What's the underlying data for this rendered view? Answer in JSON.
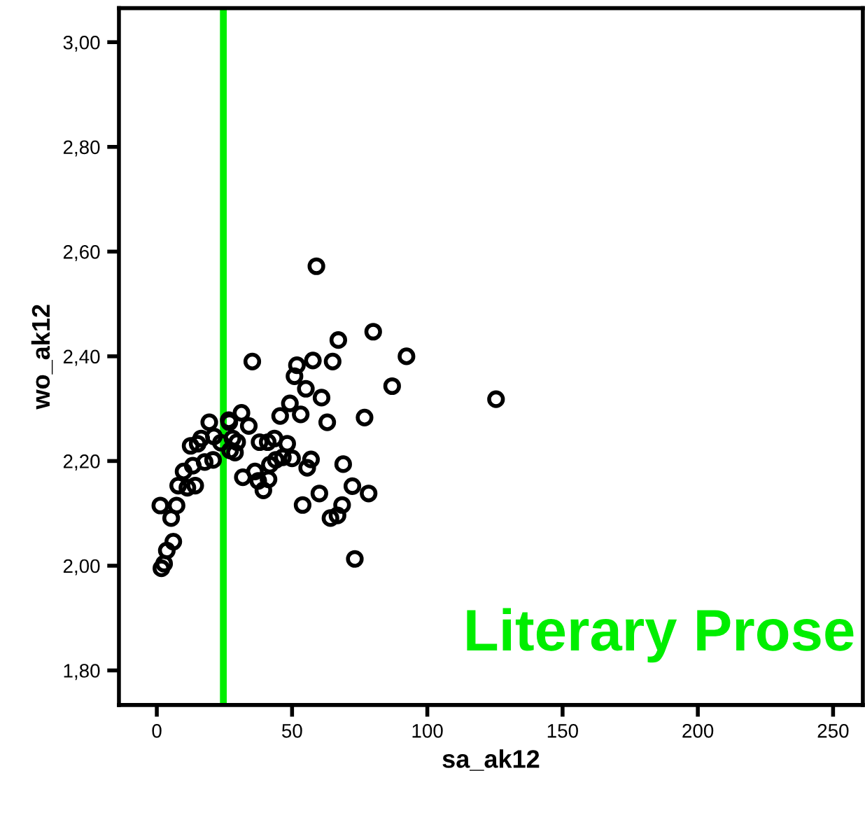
{
  "chart_data": {
    "type": "scatter",
    "xlabel": "sa_ak12",
    "ylabel": "wo_ak12",
    "x": [
      59,
      80,
      67.1,
      92.3,
      35.3,
      57.7,
      65,
      51.8,
      50.9,
      87,
      55.1,
      60.9,
      49.2,
      76.8,
      45.6,
      53.2,
      63,
      31.3,
      34,
      29.7,
      38,
      41,
      43.5,
      48.2,
      46.6,
      50,
      44,
      57,
      55.6,
      68.9,
      41.8,
      31.8,
      36.3,
      37.5,
      41.3,
      39.4,
      72.3,
      78.3,
      60.1,
      53.9,
      68.5,
      66.8,
      64.2,
      73.2,
      26.6,
      28,
      27.1,
      19.4,
      26.8,
      16.4,
      21.1,
      12.5,
      15.1,
      23.7,
      28.9,
      17.7,
      20.8,
      13.3,
      9.9,
      7.9,
      11.3,
      14.2,
      1.3,
      7.3,
      5.3,
      6.1,
      3.7,
      2.7,
      1.7,
      125.4
    ],
    "values": [
      2.572,
      2.447,
      2.431,
      2.4,
      2.39,
      2.392,
      2.39,
      2.383,
      2.362,
      2.343,
      2.338,
      2.321,
      2.31,
      2.283,
      2.286,
      2.289,
      2.274,
      2.292,
      2.267,
      2.236,
      2.236,
      2.236,
      2.243,
      2.233,
      2.207,
      2.205,
      2.202,
      2.203,
      2.187,
      2.194,
      2.193,
      2.169,
      2.18,
      2.162,
      2.165,
      2.144,
      2.152,
      2.138,
      2.138,
      2.116,
      2.116,
      2.096,
      2.091,
      2.013,
      2.278,
      2.243,
      2.22,
      2.274,
      2.274,
      2.243,
      2.247,
      2.229,
      2.233,
      2.235,
      2.216,
      2.198,
      2.202,
      2.191,
      2.18,
      2.153,
      2.149,
      2.153,
      2.115,
      2.115,
      2.091,
      2.046,
      2.029,
      2.004,
      1.995,
      2.318
    ],
    "color": "#000000",
    "marker": "circle",
    "xlim": [
      -14,
      261
    ],
    "ylim": [
      1.734,
      3.065
    ],
    "xticks": [
      0,
      50,
      100,
      150,
      200,
      250
    ],
    "yticks": [
      {
        "value": 1.8,
        "label": "1,80"
      },
      {
        "value": 2.0,
        "label": "2,00"
      },
      {
        "value": 2.2,
        "label": "2,20"
      },
      {
        "value": 2.4,
        "label": "2,40"
      },
      {
        "value": 2.6,
        "label": "2,60"
      },
      {
        "value": 2.8,
        "label": "2,80"
      },
      {
        "value": 3.0,
        "label": "3,00"
      }
    ],
    "ref_lines": [
      {
        "axis": "x",
        "value": 24.6,
        "color": "#00ee00"
      }
    ],
    "annotations": [
      "Literary Prose"
    ],
    "grid": false
  }
}
